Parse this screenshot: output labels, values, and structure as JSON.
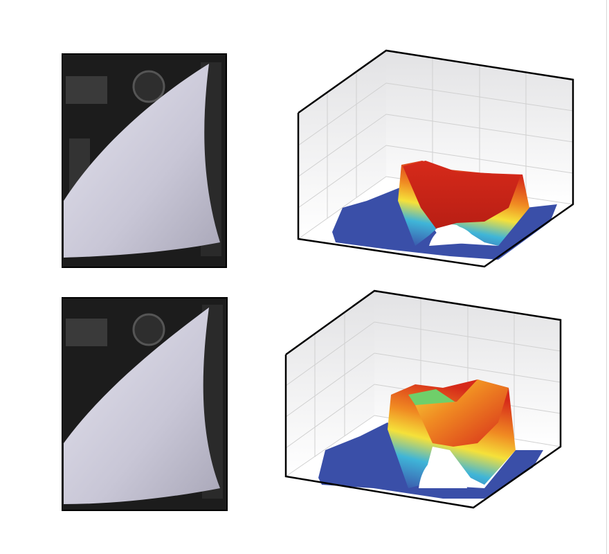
{
  "colors": {
    "photo_background": "#1a1a1a",
    "part_surface": "#c9c7d6",
    "box_edge": "#000000",
    "surface_low": "#3a4fa8",
    "surface_mid": "#f5e13a",
    "surface_high": "#d62a1a"
  },
  "panels": [
    {
      "photo_icon": "formed-part-photo",
      "plot_icon": "3d-surface-plot",
      "peak_color": "#d62a1a"
    },
    {
      "photo_icon": "formed-part-photo",
      "plot_icon": "3d-surface-plot",
      "peak_color": "#e0461c"
    }
  ]
}
